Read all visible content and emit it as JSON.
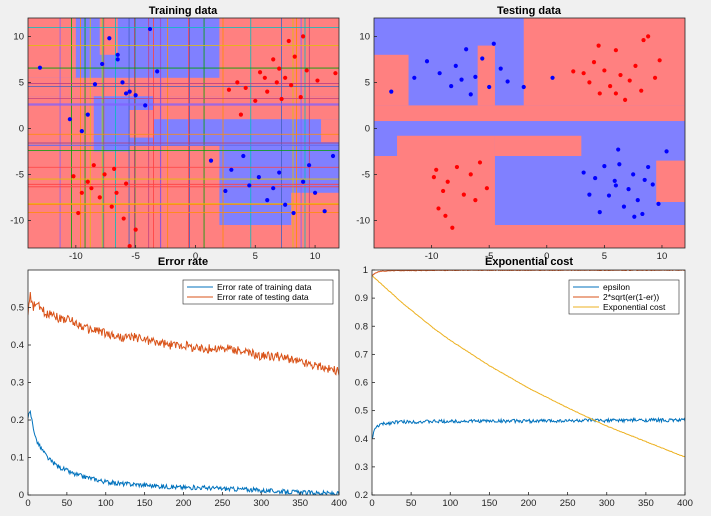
{
  "chart_data": [
    {
      "type": "scatter",
      "title": "Training data",
      "xlim": [
        -14,
        12
      ],
      "ylim": [
        -13,
        12
      ],
      "xticks": [
        -10,
        -5,
        0,
        5,
        10
      ],
      "yticks": [
        10,
        5,
        0,
        -5,
        -10
      ],
      "background": "decision-region map (red / blue) with many axis-parallel split lines",
      "region_colors": {
        "red": "#ff8080",
        "blue": "#8080ff"
      },
      "series": [
        {
          "color": "#ff0000",
          "points": [
            [
              -10.2,
              -5.2
            ],
            [
              -9.8,
              -9.2
            ],
            [
              -9.5,
              -7.0
            ],
            [
              -9.0,
              -5.8
            ],
            [
              -8.7,
              -6.5
            ],
            [
              -8.0,
              -7.5
            ],
            [
              -7.6,
              -5.0
            ],
            [
              -7.0,
              -8.5
            ],
            [
              -6.6,
              -7.0
            ],
            [
              -6.0,
              -9.8
            ],
            [
              -5.8,
              -6.0
            ],
            [
              -5.5,
              -12.8
            ],
            [
              -5.0,
              -11.0
            ],
            [
              -8.5,
              -4.0
            ],
            [
              -6.8,
              -4.4
            ],
            [
              3.5,
              5.0
            ],
            [
              4.2,
              4.4
            ],
            [
              5.0,
              3.0
            ],
            [
              5.4,
              6.1
            ],
            [
              6.0,
              4.0
            ],
            [
              6.5,
              7.5
            ],
            [
              6.8,
              5.0
            ],
            [
              7.0,
              6.5
            ],
            [
              7.5,
              5.5
            ],
            [
              8.0,
              4.7
            ],
            [
              8.3,
              7.8
            ],
            [
              8.8,
              3.4
            ],
            [
              9.3,
              6.3
            ],
            [
              10.2,
              5.2
            ],
            [
              11.7,
              6.0
            ],
            [
              7.8,
              9.5
            ],
            [
              9.0,
              10.0
            ],
            [
              3.8,
              1.5
            ],
            [
              5.8,
              5.5
            ],
            [
              7.2,
              3.2
            ],
            [
              2.8,
              4.2
            ]
          ]
        },
        {
          "color": "#0000ff",
          "points": [
            [
              -13.0,
              6.6
            ],
            [
              -10.5,
              1.0
            ],
            [
              -9.0,
              1.5
            ],
            [
              -9.5,
              -0.3
            ],
            [
              -8.4,
              4.8
            ],
            [
              -7.8,
              7.0
            ],
            [
              -7.2,
              9.8
            ],
            [
              -6.5,
              7.5
            ],
            [
              -6.1,
              5.0
            ],
            [
              -5.5,
              4.0
            ],
            [
              -5.0,
              3.6
            ],
            [
              -4.2,
              2.5
            ],
            [
              -3.8,
              10.8
            ],
            [
              -3.2,
              6.2
            ],
            [
              1.3,
              -3.5
            ],
            [
              2.5,
              -6.8
            ],
            [
              3.0,
              -4.5
            ],
            [
              4.0,
              -3.0
            ],
            [
              4.5,
              -6.2
            ],
            [
              5.3,
              -5.3
            ],
            [
              6.0,
              -7.8
            ],
            [
              6.5,
              -6.5
            ],
            [
              7.0,
              -4.8
            ],
            [
              7.5,
              -8.3
            ],
            [
              8.2,
              -9.2
            ],
            [
              9.0,
              -5.8
            ],
            [
              9.5,
              -4.0
            ],
            [
              10.0,
              -7.0
            ],
            [
              10.8,
              -9.0
            ],
            [
              11.5,
              -3.0
            ],
            [
              -6.5,
              8.0
            ],
            [
              -5.8,
              3.8
            ]
          ]
        }
      ]
    },
    {
      "type": "scatter",
      "title": "Testing data",
      "xlim": [
        -15,
        12
      ],
      "ylim": [
        -13,
        12
      ],
      "xticks": [
        -10,
        -5,
        0,
        5,
        10
      ],
      "yticks": [
        10,
        5,
        0,
        -5,
        -10
      ],
      "background": "decision-region map (red / blue)",
      "region_colors": {
        "red": "#ff8080",
        "blue": "#8080ff"
      },
      "series": [
        {
          "color": "#ff0000",
          "points": [
            [
              -9.8,
              -5.3
            ],
            [
              -9.4,
              -8.7
            ],
            [
              -9.0,
              -6.8
            ],
            [
              -8.6,
              -5.8
            ],
            [
              -8.2,
              -10.8
            ],
            [
              -7.8,
              -4.2
            ],
            [
              -7.2,
              -7.2
            ],
            [
              -6.6,
              -5.0
            ],
            [
              -6.2,
              -7.8
            ],
            [
              -5.8,
              -3.7
            ],
            [
              -5.2,
              -6.5
            ],
            [
              -9.6,
              -4.5
            ],
            [
              -8.8,
              -9.5
            ],
            [
              2.3,
              6.2
            ],
            [
              3.2,
              6.0
            ],
            [
              3.7,
              5.0
            ],
            [
              4.1,
              7.2
            ],
            [
              4.6,
              3.8
            ],
            [
              5.0,
              6.3
            ],
            [
              5.5,
              4.6
            ],
            [
              6.0,
              8.5
            ],
            [
              6.4,
              5.8
            ],
            [
              6.8,
              3.1
            ],
            [
              7.2,
              5.2
            ],
            [
              7.7,
              6.8
            ],
            [
              8.2,
              4.1
            ],
            [
              8.8,
              10.0
            ],
            [
              9.4,
              5.5
            ],
            [
              9.8,
              7.4
            ],
            [
              6.0,
              3.8
            ],
            [
              8.4,
              9.6
            ],
            [
              4.5,
              9.0
            ]
          ]
        },
        {
          "color": "#0000ff",
          "points": [
            [
              -13.5,
              4.0
            ],
            [
              -11.5,
              5.5
            ],
            [
              -10.4,
              7.3
            ],
            [
              -9.3,
              6.0
            ],
            [
              -8.3,
              4.6
            ],
            [
              -7.9,
              6.8
            ],
            [
              -7.4,
              5.3
            ],
            [
              -7.0,
              8.6
            ],
            [
              -6.6,
              3.7
            ],
            [
              -6.2,
              5.6
            ],
            [
              -5.6,
              7.6
            ],
            [
              -5.0,
              4.5
            ],
            [
              -4.6,
              9.2
            ],
            [
              -4.0,
              6.5
            ],
            [
              -3.4,
              5.1
            ],
            [
              -2.0,
              4.5
            ],
            [
              0.5,
              5.5
            ],
            [
              3.7,
              -7.2
            ],
            [
              4.2,
              -5.4
            ],
            [
              4.6,
              -9.1
            ],
            [
              5.0,
              -4.1
            ],
            [
              5.4,
              -7.3
            ],
            [
              5.9,
              -5.7
            ],
            [
              6.3,
              -3.9
            ],
            [
              6.7,
              -8.5
            ],
            [
              7.1,
              -6.6
            ],
            [
              7.5,
              -5.0
            ],
            [
              7.9,
              -7.8
            ],
            [
              8.3,
              -9.3
            ],
            [
              8.8,
              -4.2
            ],
            [
              9.2,
              -6.1
            ],
            [
              9.7,
              -8.2
            ],
            [
              10.4,
              -2.5
            ],
            [
              6.2,
              -2.3
            ],
            [
              7.6,
              -9.6
            ],
            [
              8.5,
              -5.6
            ],
            [
              6.0,
              -6.2
            ],
            [
              3.2,
              -4.8
            ]
          ]
        }
      ]
    },
    {
      "type": "line",
      "title": "Error rate",
      "xlim": [
        0,
        400
      ],
      "ylim": [
        0,
        0.6
      ],
      "xticks": [
        0,
        50,
        100,
        150,
        200,
        250,
        300,
        350,
        400
      ],
      "yticks": [
        0,
        0.1,
        0.2,
        0.3,
        0.4,
        0.5
      ],
      "legend": "top-right",
      "series": [
        {
          "name": "Error rate of training data",
          "color": "#0072bd",
          "x": [
            0,
            3,
            6,
            10,
            15,
            20,
            25,
            30,
            40,
            50,
            60,
            70,
            80,
            90,
            100,
            120,
            140,
            160,
            180,
            200,
            220,
            240,
            260,
            280,
            300,
            320,
            340,
            360,
            380,
            390,
            400
          ],
          "y": [
            0.21,
            0.22,
            0.19,
            0.15,
            0.13,
            0.115,
            0.1,
            0.09,
            0.075,
            0.065,
            0.055,
            0.05,
            0.045,
            0.04,
            0.035,
            0.03,
            0.028,
            0.025,
            0.022,
            0.02,
            0.02,
            0.018,
            0.016,
            0.015,
            0.012,
            0.01,
            0.008,
            0.006,
            0.005,
            0.004,
            0.003
          ]
        },
        {
          "name": "Error rate of testing data",
          "color": "#d95319",
          "x": [
            0,
            3,
            6,
            10,
            15,
            20,
            25,
            30,
            40,
            50,
            60,
            70,
            80,
            90,
            100,
            120,
            140,
            160,
            180,
            200,
            220,
            240,
            260,
            280,
            300,
            320,
            340,
            360,
            380,
            390,
            400
          ],
          "y": [
            0.49,
            0.53,
            0.5,
            0.51,
            0.5,
            0.49,
            0.48,
            0.49,
            0.47,
            0.47,
            0.46,
            0.45,
            0.44,
            0.44,
            0.43,
            0.42,
            0.42,
            0.41,
            0.4,
            0.4,
            0.39,
            0.39,
            0.39,
            0.38,
            0.37,
            0.37,
            0.36,
            0.35,
            0.34,
            0.335,
            0.33
          ]
        }
      ]
    },
    {
      "type": "line",
      "title": "Exponential cost",
      "xlim": [
        0,
        400
      ],
      "ylim": [
        0.2,
        1.0
      ],
      "xticks": [
        0,
        50,
        100,
        150,
        200,
        250,
        300,
        350,
        400
      ],
      "yticks": [
        0.2,
        0.3,
        0.4,
        0.5,
        0.6,
        0.7,
        0.8,
        0.9,
        1
      ],
      "legend": "top-right",
      "series": [
        {
          "name": "epsilon",
          "color": "#0072bd",
          "x": [
            0,
            2,
            5,
            10,
            20,
            30,
            50,
            100,
            150,
            200,
            250,
            300,
            350,
            400
          ],
          "y": [
            0.4,
            0.42,
            0.44,
            0.45,
            0.455,
            0.46,
            0.46,
            0.462,
            0.463,
            0.463,
            0.464,
            0.465,
            0.466,
            0.466
          ]
        },
        {
          "name": "2*sqrt(er(1-er))",
          "color": "#d95319",
          "x": [
            0,
            2,
            5,
            10,
            20,
            30,
            50,
            100,
            150,
            200,
            250,
            300,
            350,
            400
          ],
          "y": [
            0.98,
            0.985,
            0.99,
            0.995,
            0.997,
            0.998,
            0.998,
            0.999,
            0.999,
            0.999,
            0.999,
            0.999,
            0.999,
            0.999
          ]
        },
        {
          "name": "Exponential cost",
          "color": "#edb120",
          "x": [
            0,
            10,
            20,
            40,
            60,
            80,
            100,
            150,
            200,
            250,
            300,
            350,
            400
          ],
          "y": [
            0.98,
            0.955,
            0.93,
            0.88,
            0.835,
            0.79,
            0.75,
            0.66,
            0.58,
            0.51,
            0.445,
            0.39,
            0.335
          ]
        }
      ]
    }
  ]
}
